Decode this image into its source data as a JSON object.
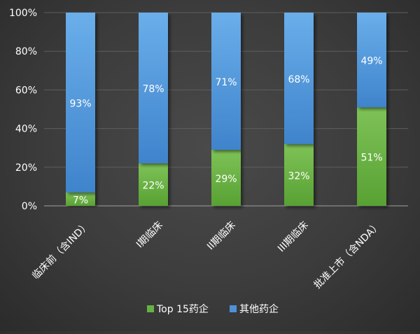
{
  "chart_data": {
    "type": "bar",
    "stacked": true,
    "categories": [
      "临床前（含IND）",
      "I期临床",
      "II期临床",
      "III期临床",
      "批准上市（含NDA）"
    ],
    "series": [
      {
        "name": "Top 15药企",
        "values": [
          7,
          22,
          29,
          32,
          51
        ],
        "labels": [
          "7%",
          "22%",
          "29%",
          "32%",
          "51%"
        ],
        "color": "#67b045"
      },
      {
        "name": "其他药企",
        "values": [
          93,
          78,
          71,
          68,
          49
        ],
        "labels": [
          "93%",
          "78%",
          "71%",
          "68%",
          "49%"
        ],
        "color": "#4f91d7"
      }
    ],
    "ylim": [
      0,
      100
    ],
    "yticks": [
      0,
      20,
      40,
      60,
      80,
      100
    ],
    "ytick_labels": [
      "0%",
      "20%",
      "40%",
      "60%",
      "80%",
      "100%"
    ],
    "grid": true,
    "legend_position": "bottom",
    "background_color": "#3c3c3c",
    "text_color": "#ffffff",
    "grid_color": "#5e5e5e"
  }
}
